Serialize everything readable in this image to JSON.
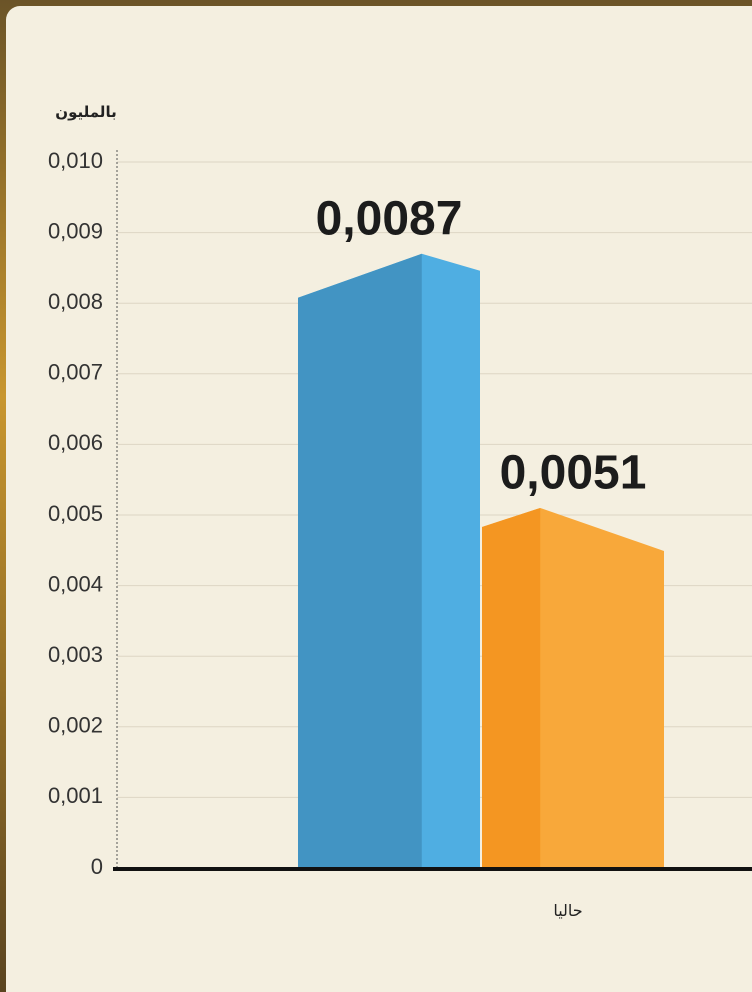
{
  "chart_data": {
    "type": "bar",
    "y_axis_label": "بالمليون",
    "categories": [
      "حاليا"
    ],
    "series": [
      {
        "color": "#4faee2",
        "values": [
          0.0087
        ],
        "value_labels": [
          "0,0087"
        ]
      },
      {
        "color": "#f8a83a",
        "values": [
          0.0051
        ],
        "value_labels": [
          "0,0051"
        ]
      }
    ],
    "ylim": [
      0,
      0.01
    ],
    "yticks": [
      0,
      {
        "value": 0.001,
        "label": "0,001"
      },
      {
        "value": 0.002,
        "label": "0,002"
      },
      {
        "value": 0.003,
        "label": "0,003"
      },
      {
        "value": 0.004,
        "label": "0,004"
      },
      {
        "value": 0.005,
        "label": "0,005"
      },
      {
        "value": 0.006,
        "label": "0,006"
      },
      {
        "value": 0.007,
        "label": "0,007"
      },
      {
        "value": 0.008,
        "label": "0,008"
      },
      {
        "value": 0.009,
        "label": "0,009"
      },
      {
        "value": 0.01,
        "label": "0,010"
      }
    ],
    "grid": true
  }
}
